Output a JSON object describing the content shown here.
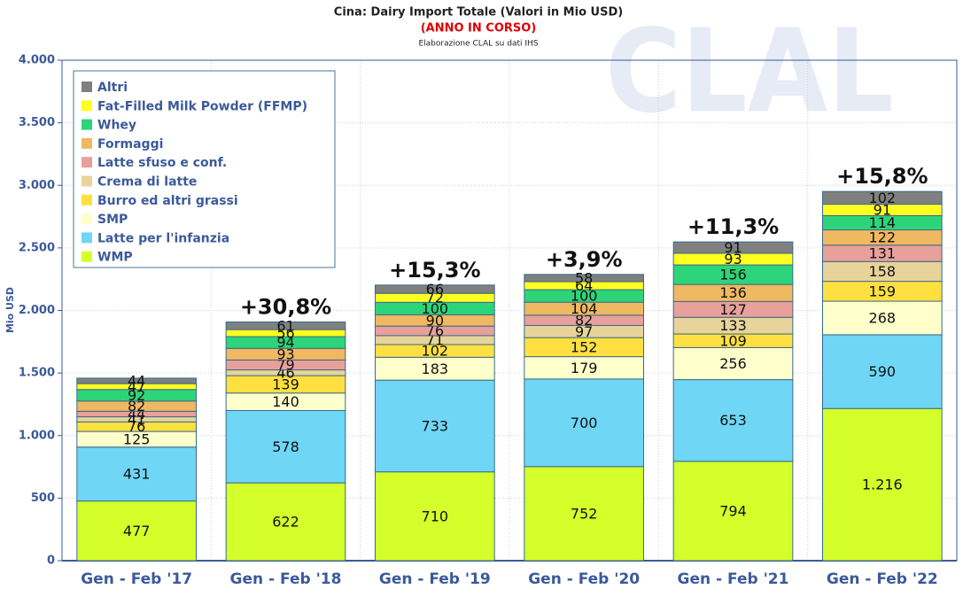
{
  "chart_data": {
    "type": "stacked_bar",
    "title": "Cina: Dairy Import Totale (Valori in Mio USD)",
    "subtitle": "(ANNO IN CORSO)",
    "source": "Elaborazione CLAL su dati IHS",
    "watermark": "CLAL",
    "y_label": "Mio USD",
    "categories": [
      "Gen - Feb '17",
      "Gen - Feb '18",
      "Gen - Feb '19",
      "Gen - Feb '20",
      "Gen - Feb '21",
      "Gen - Feb '22"
    ],
    "growth_labels": [
      null,
      "+30,8%",
      "+15,3%",
      "+3,9%",
      "+11,3%",
      "+15,8%"
    ],
    "series": [
      {
        "name": "WMP",
        "color": "#d4ff2a",
        "values": [
          477,
          622,
          710,
          752,
          794,
          1216
        ],
        "value_labels": [
          "477",
          "622",
          "710",
          "752",
          "794",
          "1.216"
        ]
      },
      {
        "name": "Latte per l'infanzia",
        "color": "#6fd6f5",
        "values": [
          431,
          578,
          733,
          700,
          653,
          590
        ]
      },
      {
        "name": "SMP",
        "color": "#ffffcc",
        "values": [
          125,
          140,
          183,
          179,
          256,
          268
        ]
      },
      {
        "name": "Burro ed altri grassi",
        "color": "#ffe040",
        "values": [
          76,
          139,
          102,
          152,
          109,
          159
        ]
      },
      {
        "name": "Crema di latte",
        "color": "#e8d49a",
        "values": [
          41,
          46,
          71,
          97,
          133,
          158
        ]
      },
      {
        "name": "Latte sfuso e conf.",
        "color": "#e8a09a",
        "values": [
          44,
          79,
          76,
          82,
          127,
          131
        ]
      },
      {
        "name": "Formaggi",
        "color": "#f0b860",
        "values": [
          82,
          93,
          90,
          104,
          136,
          122
        ]
      },
      {
        "name": "Whey",
        "color": "#2ed47a",
        "values": [
          92,
          94,
          100,
          100,
          156,
          114
        ]
      },
      {
        "name": "Fat-Filled Milk Powder (FFMP)",
        "color": "#ffff20",
        "values": [
          47,
          56,
          72,
          64,
          93,
          91
        ]
      },
      {
        "name": "Altri",
        "color": "#808080",
        "values": [
          44,
          61,
          66,
          58,
          91,
          102
        ]
      }
    ],
    "ylim": [
      0,
      4000
    ],
    "yticks": [
      0,
      500,
      {
        "value": 1000,
        "label": "1.000"
      },
      {
        "value": 1500,
        "label": "1.500"
      },
      {
        "value": 2000,
        "label": "2.000"
      },
      {
        "value": 2500,
        "label": "2.500"
      },
      {
        "value": 3000,
        "label": "3.000"
      },
      {
        "value": 3500,
        "label": "3.500"
      },
      {
        "value": 4000,
        "label": "4.000"
      }
    ],
    "grid": true
  }
}
